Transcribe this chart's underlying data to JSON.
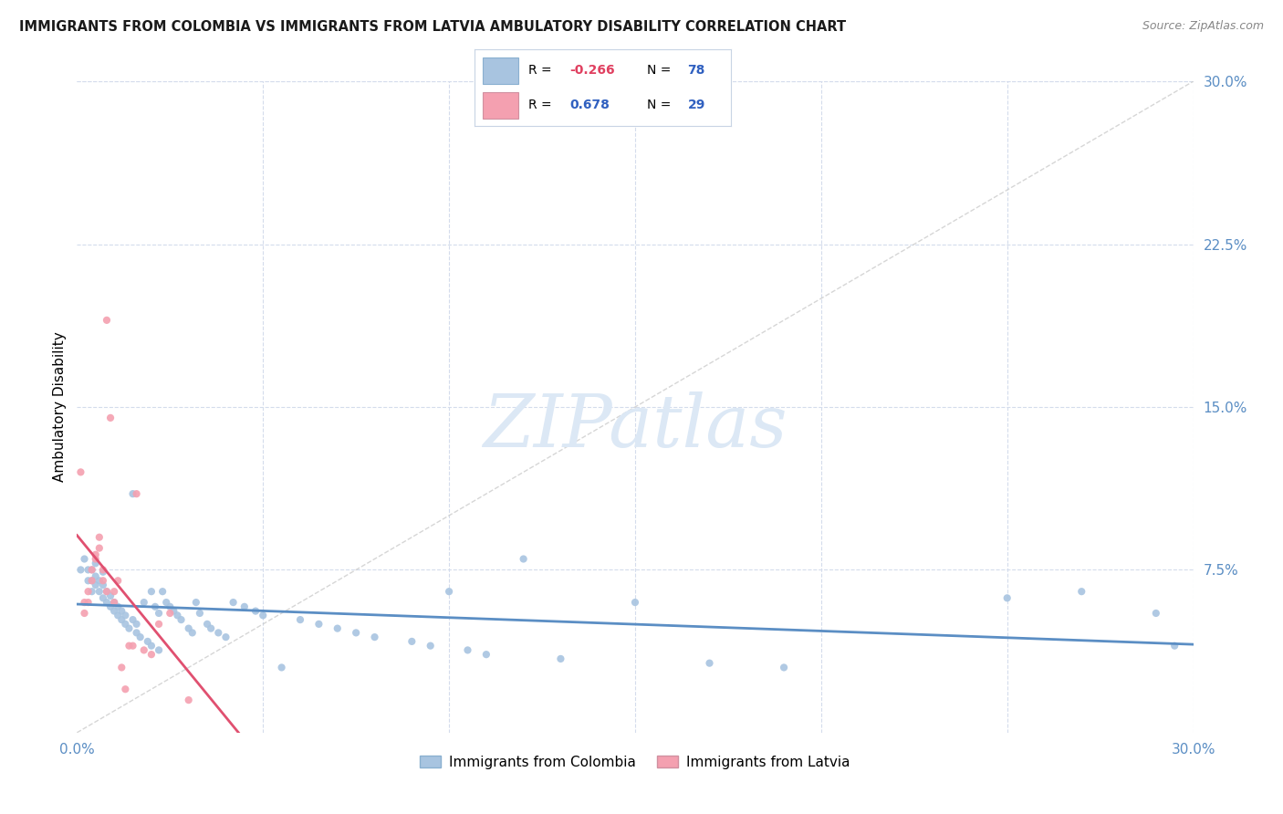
{
  "title": "IMMIGRANTS FROM COLOMBIA VS IMMIGRANTS FROM LATVIA AMBULATORY DISABILITY CORRELATION CHART",
  "source": "Source: ZipAtlas.com",
  "ylabel": "Ambulatory Disability",
  "xlim": [
    0.0,
    0.3
  ],
  "ylim": [
    0.0,
    0.3
  ],
  "colombia_R": -0.266,
  "colombia_N": 78,
  "latvia_R": 0.678,
  "latvia_N": 29,
  "colombia_color": "#a8c4e0",
  "latvia_color": "#f4a0b0",
  "colombia_line_color": "#5b8ec4",
  "latvia_line_color": "#e05070",
  "diagonal_color": "#cccccc",
  "watermark_color": "#dce8f5",
  "colombia_x": [
    0.001,
    0.002,
    0.003,
    0.003,
    0.004,
    0.004,
    0.004,
    0.005,
    0.005,
    0.005,
    0.006,
    0.006,
    0.007,
    0.007,
    0.007,
    0.008,
    0.008,
    0.009,
    0.009,
    0.01,
    0.01,
    0.011,
    0.011,
    0.012,
    0.012,
    0.013,
    0.013,
    0.014,
    0.015,
    0.015,
    0.016,
    0.016,
    0.017,
    0.018,
    0.019,
    0.02,
    0.02,
    0.021,
    0.022,
    0.022,
    0.023,
    0.024,
    0.025,
    0.026,
    0.027,
    0.028,
    0.03,
    0.031,
    0.032,
    0.033,
    0.035,
    0.036,
    0.038,
    0.04,
    0.042,
    0.045,
    0.048,
    0.05,
    0.055,
    0.06,
    0.065,
    0.07,
    0.075,
    0.08,
    0.09,
    0.095,
    0.1,
    0.105,
    0.11,
    0.12,
    0.13,
    0.15,
    0.17,
    0.19,
    0.25,
    0.27,
    0.29,
    0.295
  ],
  "colombia_y": [
    0.075,
    0.08,
    0.07,
    0.075,
    0.065,
    0.07,
    0.075,
    0.068,
    0.072,
    0.078,
    0.065,
    0.07,
    0.062,
    0.068,
    0.074,
    0.06,
    0.065,
    0.058,
    0.063,
    0.056,
    0.06,
    0.054,
    0.058,
    0.052,
    0.056,
    0.05,
    0.054,
    0.048,
    0.11,
    0.052,
    0.046,
    0.05,
    0.044,
    0.06,
    0.042,
    0.065,
    0.04,
    0.058,
    0.038,
    0.055,
    0.065,
    0.06,
    0.058,
    0.056,
    0.054,
    0.052,
    0.048,
    0.046,
    0.06,
    0.055,
    0.05,
    0.048,
    0.046,
    0.044,
    0.06,
    0.058,
    0.056,
    0.054,
    0.03,
    0.052,
    0.05,
    0.048,
    0.046,
    0.044,
    0.042,
    0.04,
    0.065,
    0.038,
    0.036,
    0.08,
    0.034,
    0.06,
    0.032,
    0.03,
    0.062,
    0.065,
    0.055,
    0.04
  ],
  "latvia_x": [
    0.001,
    0.002,
    0.002,
    0.003,
    0.003,
    0.004,
    0.004,
    0.005,
    0.005,
    0.006,
    0.006,
    0.007,
    0.007,
    0.008,
    0.008,
    0.009,
    0.01,
    0.01,
    0.011,
    0.012,
    0.013,
    0.014,
    0.015,
    0.016,
    0.018,
    0.02,
    0.022,
    0.025,
    0.03
  ],
  "latvia_y": [
    0.12,
    0.055,
    0.06,
    0.06,
    0.065,
    0.07,
    0.075,
    0.08,
    0.082,
    0.085,
    0.09,
    0.07,
    0.075,
    0.065,
    0.19,
    0.145,
    0.06,
    0.065,
    0.07,
    0.03,
    0.02,
    0.04,
    0.04,
    0.11,
    0.038,
    0.036,
    0.05,
    0.055,
    0.015
  ],
  "latvia_line_x": [
    0.0,
    0.3
  ],
  "colombia_line_x": [
    0.0,
    0.3
  ],
  "tick_color": "#5b8ec4",
  "title_fontsize": 10.5,
  "axis_fontsize": 11
}
